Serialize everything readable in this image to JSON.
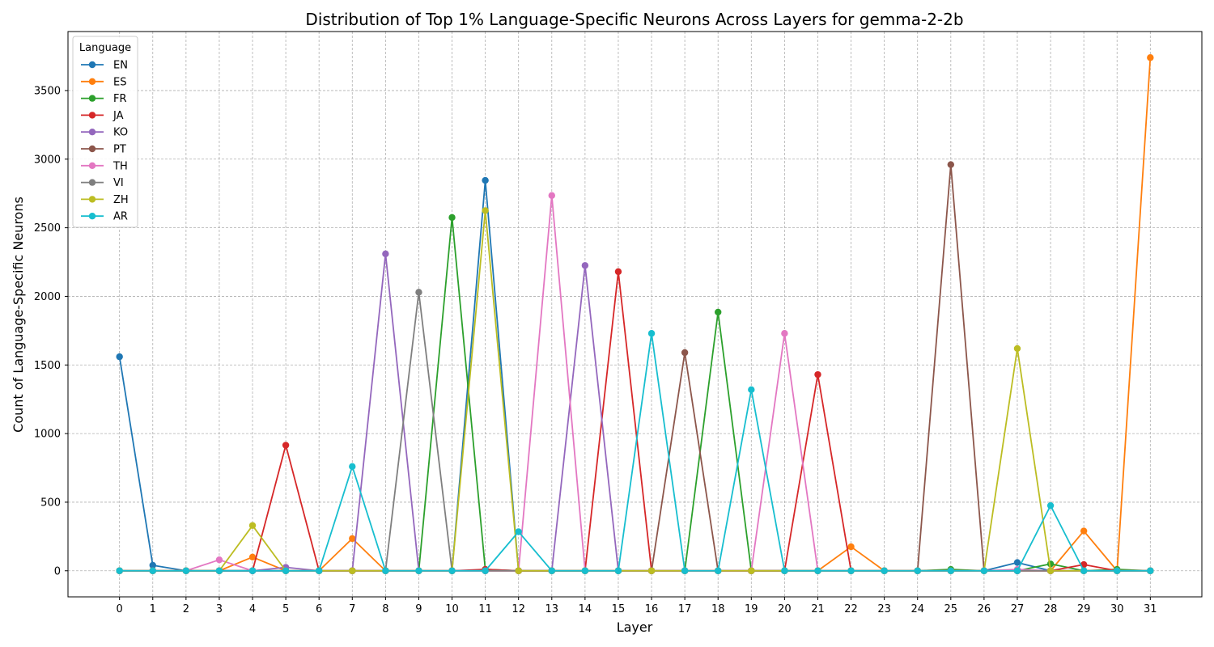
{
  "chart_data": {
    "type": "line",
    "title": "Distribution of Top 1% Language-Specific Neurons Across Layers for gemma-2-2b",
    "xlabel": "Layer",
    "ylabel": "Count of Language-Specific Neurons",
    "x": [
      0,
      1,
      2,
      3,
      4,
      5,
      6,
      7,
      8,
      9,
      10,
      11,
      12,
      13,
      14,
      15,
      16,
      17,
      18,
      19,
      20,
      21,
      22,
      23,
      24,
      25,
      26,
      27,
      28,
      29,
      30,
      31
    ],
    "xlim": [
      -1.55,
      32.55
    ],
    "ylim": [
      -190,
      3930
    ],
    "yticks": [
      0,
      500,
      1000,
      1500,
      2000,
      2500,
      3000,
      3500
    ],
    "grid": true,
    "legend": {
      "title": "Language",
      "placement": "top-left"
    },
    "series": [
      {
        "name": "EN",
        "color": "#1f77b4",
        "values": [
          1560,
          40,
          0,
          0,
          0,
          0,
          0,
          0,
          0,
          0,
          0,
          2845,
          0,
          0,
          0,
          0,
          0,
          0,
          0,
          0,
          0,
          0,
          0,
          0,
          0,
          0,
          0,
          60,
          0,
          0,
          0,
          0
        ]
      },
      {
        "name": "ES",
        "color": "#ff7f0e",
        "values": [
          0,
          0,
          0,
          0,
          100,
          0,
          0,
          235,
          0,
          0,
          0,
          0,
          0,
          0,
          0,
          0,
          0,
          0,
          0,
          0,
          0,
          0,
          175,
          0,
          0,
          0,
          0,
          0,
          0,
          290,
          0,
          3740
        ]
      },
      {
        "name": "FR",
        "color": "#2ca02c",
        "values": [
          0,
          0,
          0,
          0,
          0,
          0,
          0,
          0,
          0,
          0,
          2575,
          10,
          0,
          0,
          0,
          0,
          0,
          0,
          1885,
          0,
          0,
          0,
          0,
          0,
          0,
          10,
          0,
          0,
          50,
          0,
          10,
          0
        ]
      },
      {
        "name": "JA",
        "color": "#d62728",
        "values": [
          0,
          0,
          0,
          0,
          0,
          915,
          0,
          0,
          0,
          0,
          0,
          10,
          0,
          0,
          0,
          2180,
          0,
          0,
          0,
          0,
          0,
          1430,
          0,
          0,
          0,
          0,
          0,
          0,
          0,
          45,
          0,
          0
        ]
      },
      {
        "name": "KO",
        "color": "#9467bd",
        "values": [
          0,
          0,
          0,
          0,
          0,
          25,
          0,
          0,
          2310,
          0,
          0,
          0,
          0,
          0,
          2225,
          0,
          0,
          0,
          0,
          0,
          0,
          0,
          0,
          0,
          0,
          0,
          0,
          0,
          0,
          0,
          0,
          0
        ]
      },
      {
        "name": "PT",
        "color": "#8c564b",
        "values": [
          0,
          0,
          0,
          0,
          0,
          0,
          0,
          0,
          0,
          0,
          0,
          0,
          0,
          0,
          0,
          0,
          0,
          1590,
          0,
          0,
          0,
          0,
          0,
          0,
          0,
          2960,
          0,
          0,
          0,
          0,
          0,
          0
        ]
      },
      {
        "name": "TH",
        "color": "#e377c2",
        "values": [
          0,
          0,
          0,
          80,
          0,
          0,
          0,
          0,
          0,
          0,
          0,
          0,
          0,
          2735,
          0,
          0,
          0,
          0,
          0,
          0,
          1730,
          0,
          0,
          0,
          0,
          0,
          0,
          10,
          0,
          0,
          0,
          0
        ]
      },
      {
        "name": "VI",
        "color": "#7f7f7f",
        "values": [
          0,
          0,
          0,
          0,
          0,
          0,
          0,
          0,
          0,
          2030,
          0,
          0,
          0,
          0,
          0,
          0,
          0,
          0,
          0,
          0,
          0,
          0,
          0,
          0,
          0,
          0,
          0,
          0,
          0,
          0,
          0,
          0
        ]
      },
      {
        "name": "ZH",
        "color": "#bcbd22",
        "values": [
          0,
          0,
          0,
          0,
          330,
          0,
          0,
          0,
          0,
          0,
          0,
          2625,
          0,
          0,
          0,
          0,
          0,
          0,
          0,
          0,
          0,
          0,
          0,
          0,
          0,
          0,
          0,
          1620,
          0,
          0,
          0,
          0
        ]
      },
      {
        "name": "AR",
        "color": "#17becf",
        "values": [
          0,
          0,
          0,
          0,
          0,
          0,
          0,
          760,
          0,
          0,
          0,
          0,
          285,
          0,
          0,
          0,
          1730,
          0,
          0,
          1320,
          0,
          0,
          0,
          0,
          0,
          0,
          0,
          0,
          475,
          0,
          0,
          0
        ]
      }
    ]
  }
}
